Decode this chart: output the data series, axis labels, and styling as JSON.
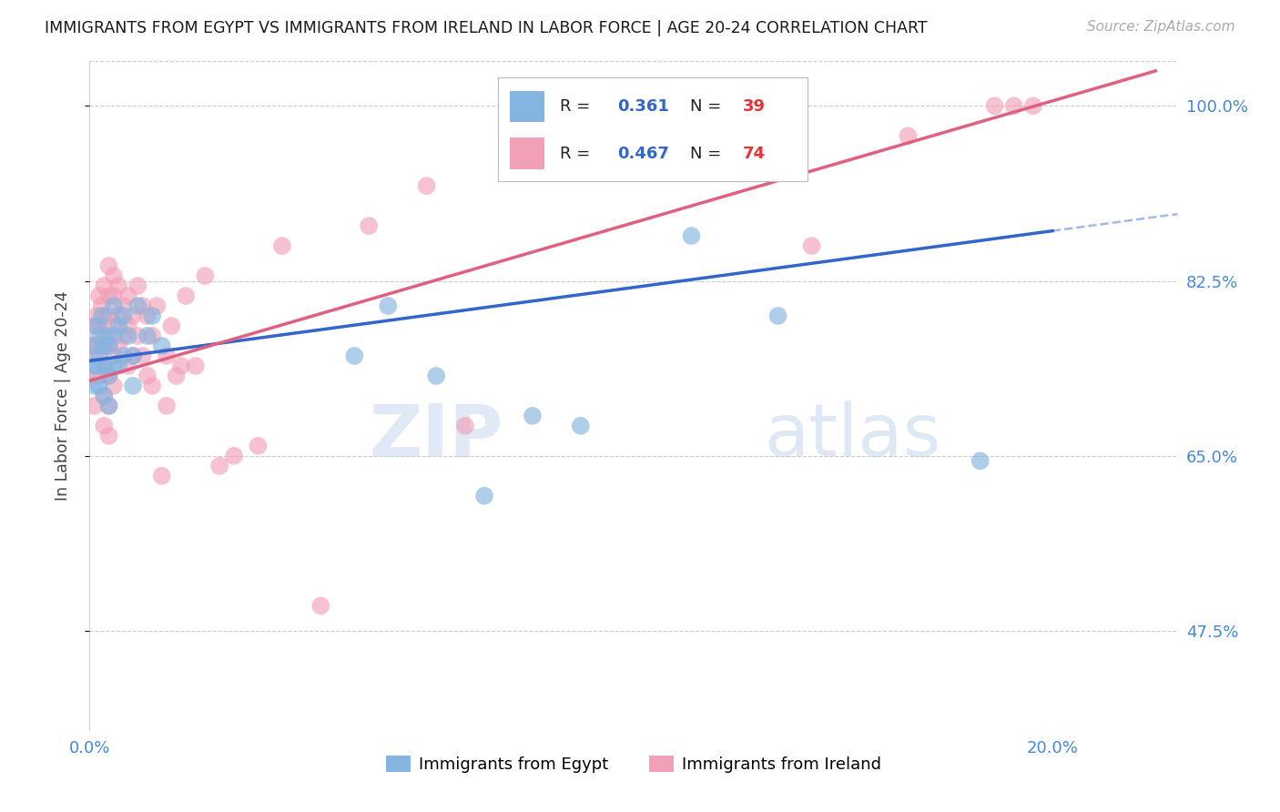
{
  "title": "IMMIGRANTS FROM EGYPT VS IMMIGRANTS FROM IRELAND IN LABOR FORCE | AGE 20-24 CORRELATION CHART",
  "source": "Source: ZipAtlas.com",
  "ylabel": "In Labor Force | Age 20-24",
  "yticks": [
    0.475,
    0.65,
    0.825,
    1.0
  ],
  "ytick_labels": [
    "47.5%",
    "65.0%",
    "82.5%",
    "100.0%"
  ],
  "xmin": 0.0,
  "xmax": 0.2,
  "ymin": 0.375,
  "ymax": 1.045,
  "watermark_zip": "ZIP",
  "watermark_atlas": "atlas",
  "legend_egypt_R": "0.361",
  "legend_egypt_N": "39",
  "legend_ireland_R": "0.467",
  "legend_ireland_N": "74",
  "egypt_color": "#85b4e0",
  "ireland_color": "#f2a0b8",
  "egypt_line_color": "#3366cc",
  "ireland_line_color": "#e06080",
  "egypt_scatter_x": [
    0.0008,
    0.001,
    0.001,
    0.0015,
    0.0015,
    0.002,
    0.002,
    0.002,
    0.0025,
    0.003,
    0.003,
    0.003,
    0.0035,
    0.004,
    0.004,
    0.004,
    0.005,
    0.005,
    0.005,
    0.006,
    0.006,
    0.007,
    0.007,
    0.008,
    0.009,
    0.009,
    0.01,
    0.012,
    0.013,
    0.015,
    0.055,
    0.062,
    0.072,
    0.082,
    0.092,
    0.102,
    0.125,
    0.143,
    0.185
  ],
  "egypt_scatter_y": [
    0.76,
    0.74,
    0.72,
    0.78,
    0.74,
    0.77,
    0.75,
    0.72,
    0.79,
    0.76,
    0.74,
    0.71,
    0.77,
    0.76,
    0.73,
    0.7,
    0.8,
    0.77,
    0.74,
    0.78,
    0.74,
    0.79,
    0.75,
    0.77,
    0.75,
    0.72,
    0.8,
    0.77,
    0.79,
    0.76,
    0.75,
    0.8,
    0.73,
    0.61,
    0.69,
    0.68,
    0.87,
    0.79,
    0.645
  ],
  "ireland_scatter_x": [
    0.0005,
    0.001,
    0.001,
    0.001,
    0.001,
    0.0015,
    0.002,
    0.002,
    0.002,
    0.002,
    0.0025,
    0.003,
    0.003,
    0.003,
    0.003,
    0.003,
    0.003,
    0.004,
    0.004,
    0.004,
    0.004,
    0.004,
    0.004,
    0.004,
    0.005,
    0.005,
    0.005,
    0.005,
    0.005,
    0.006,
    0.006,
    0.006,
    0.007,
    0.007,
    0.008,
    0.008,
    0.008,
    0.009,
    0.009,
    0.01,
    0.01,
    0.011,
    0.011,
    0.012,
    0.012,
    0.013,
    0.013,
    0.014,
    0.015,
    0.016,
    0.016,
    0.017,
    0.018,
    0.019,
    0.02,
    0.022,
    0.024,
    0.027,
    0.03,
    0.035,
    0.04,
    0.048,
    0.058,
    0.07,
    0.078,
    0.09,
    0.1,
    0.108,
    0.115,
    0.15,
    0.17,
    0.188,
    0.192,
    0.196
  ],
  "ireland_scatter_y": [
    0.76,
    0.78,
    0.75,
    0.73,
    0.7,
    0.79,
    0.81,
    0.78,
    0.76,
    0.73,
    0.8,
    0.82,
    0.79,
    0.77,
    0.74,
    0.71,
    0.68,
    0.84,
    0.81,
    0.79,
    0.76,
    0.73,
    0.7,
    0.67,
    0.83,
    0.81,
    0.78,
    0.75,
    0.72,
    0.82,
    0.79,
    0.76,
    0.8,
    0.77,
    0.81,
    0.78,
    0.74,
    0.79,
    0.75,
    0.82,
    0.77,
    0.8,
    0.75,
    0.79,
    0.73,
    0.77,
    0.72,
    0.8,
    0.63,
    0.75,
    0.7,
    0.78,
    0.73,
    0.74,
    0.81,
    0.74,
    0.83,
    0.64,
    0.65,
    0.66,
    0.86,
    0.5,
    0.88,
    0.92,
    0.68,
    0.95,
    1.0,
    0.97,
    1.0,
    0.86,
    0.97,
    1.0,
    1.0,
    1.0
  ],
  "egypt_line_x0": 0.0,
  "egypt_line_y0": 0.745,
  "egypt_line_x1": 0.2,
  "egypt_line_y1": 0.875,
  "ireland_line_x0": 0.0,
  "ireland_line_y0": 0.725,
  "ireland_line_x1": 0.2,
  "ireland_line_y1": 1.005
}
